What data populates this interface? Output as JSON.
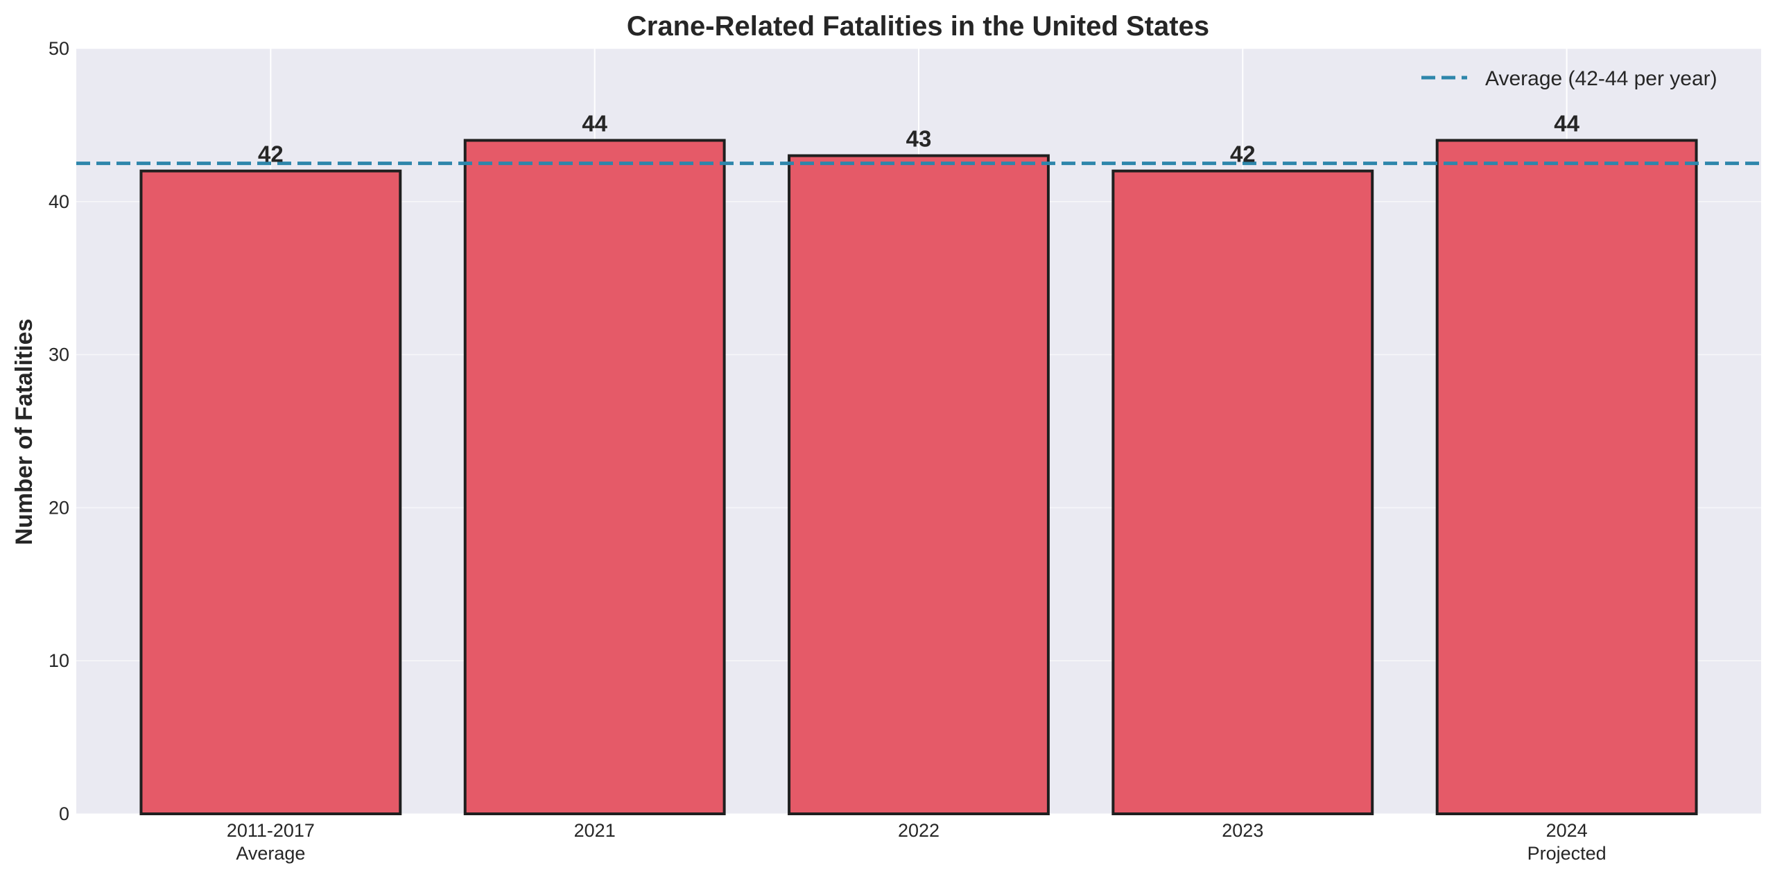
{
  "chart_data": {
    "type": "bar",
    "title": "Crane-Related Fatalities in the United States",
    "xlabel": "",
    "ylabel": "Number of Fatalities",
    "categories": [
      [
        "2011-2017",
        "Average"
      ],
      [
        "2021"
      ],
      [
        "2022"
      ],
      [
        "2023"
      ],
      [
        "2024",
        "Projected"
      ]
    ],
    "values": [
      42,
      44,
      43,
      42,
      44
    ],
    "value_labels": [
      "42",
      "44",
      "43",
      "42",
      "44"
    ],
    "ylim": [
      0,
      50
    ],
    "yticks": [
      0,
      10,
      20,
      30,
      40,
      50
    ],
    "reference_line": {
      "value": 42.5,
      "label": "Average (42-44 per year)",
      "style": "dashed"
    },
    "legend_position": "top-right",
    "grid": true,
    "colors": {
      "bar_fill": "#e55a68",
      "bar_edge": "#1f1f1f",
      "reference_line": "#2e86ab",
      "plot_background": "#eaeaf2",
      "grid": "#ffffff"
    }
  }
}
